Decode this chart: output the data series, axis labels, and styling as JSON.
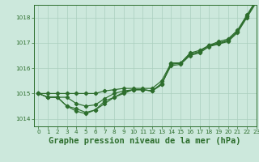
{
  "background_color": "#cce8dc",
  "grid_color": "#aacfbe",
  "line_color": "#2d6e2d",
  "title": "Graphe pression niveau de la mer (hPa)",
  "xlim": [
    -0.5,
    23
  ],
  "ylim": [
    1013.7,
    1018.5
  ],
  "yticks": [
    1014,
    1015,
    1016,
    1017,
    1018
  ],
  "xticks": [
    0,
    1,
    2,
    3,
    4,
    5,
    6,
    7,
    8,
    9,
    10,
    11,
    12,
    13,
    14,
    15,
    16,
    17,
    18,
    19,
    20,
    21,
    22,
    23
  ],
  "series": [
    [
      1015.0,
      1014.85,
      1014.85,
      1014.85,
      1014.6,
      1014.5,
      1014.55,
      1014.8,
      1015.0,
      1015.1,
      1015.15,
      1015.15,
      1015.1,
      1015.35,
      1016.2,
      1016.2,
      1016.55,
      1016.65,
      1016.9,
      1017.0,
      1017.1,
      1017.45,
      1018.05,
      1018.65
    ],
    [
      1015.0,
      1014.85,
      1014.85,
      1014.5,
      1014.4,
      1014.25,
      1014.35,
      1014.6,
      1014.85,
      1015.0,
      1015.15,
      1015.15,
      1015.1,
      1015.35,
      1016.15,
      1016.2,
      1016.55,
      1016.65,
      1016.9,
      1016.95,
      1017.1,
      1017.45,
      1018.05,
      1018.65
    ],
    [
      1015.0,
      1014.85,
      1014.85,
      1014.5,
      1014.3,
      1014.2,
      1014.35,
      1014.7,
      1014.85,
      1015.05,
      1015.15,
      1015.15,
      1015.1,
      1015.4,
      1016.1,
      1016.15,
      1016.5,
      1016.6,
      1016.85,
      1016.95,
      1017.05,
      1017.4,
      1018.0,
      1018.6
    ],
    [
      1015.0,
      1015.0,
      1015.0,
      1015.0,
      1015.0,
      1015.0,
      1015.0,
      1015.1,
      1015.15,
      1015.2,
      1015.2,
      1015.2,
      1015.2,
      1015.5,
      1016.2,
      1016.2,
      1016.6,
      1016.7,
      1016.9,
      1017.05,
      1017.15,
      1017.5,
      1018.1,
      1018.7
    ]
  ],
  "marker": "D",
  "markersize": 2.2,
  "linewidth": 0.85,
  "title_fontsize": 7.5,
  "tick_fontsize": 5.2,
  "title_color": "#2d6e2d",
  "tick_color": "#2d6e2d",
  "spine_color": "#2d6e2d",
  "ylabel_pad": 1,
  "xlabel_pad": 2
}
